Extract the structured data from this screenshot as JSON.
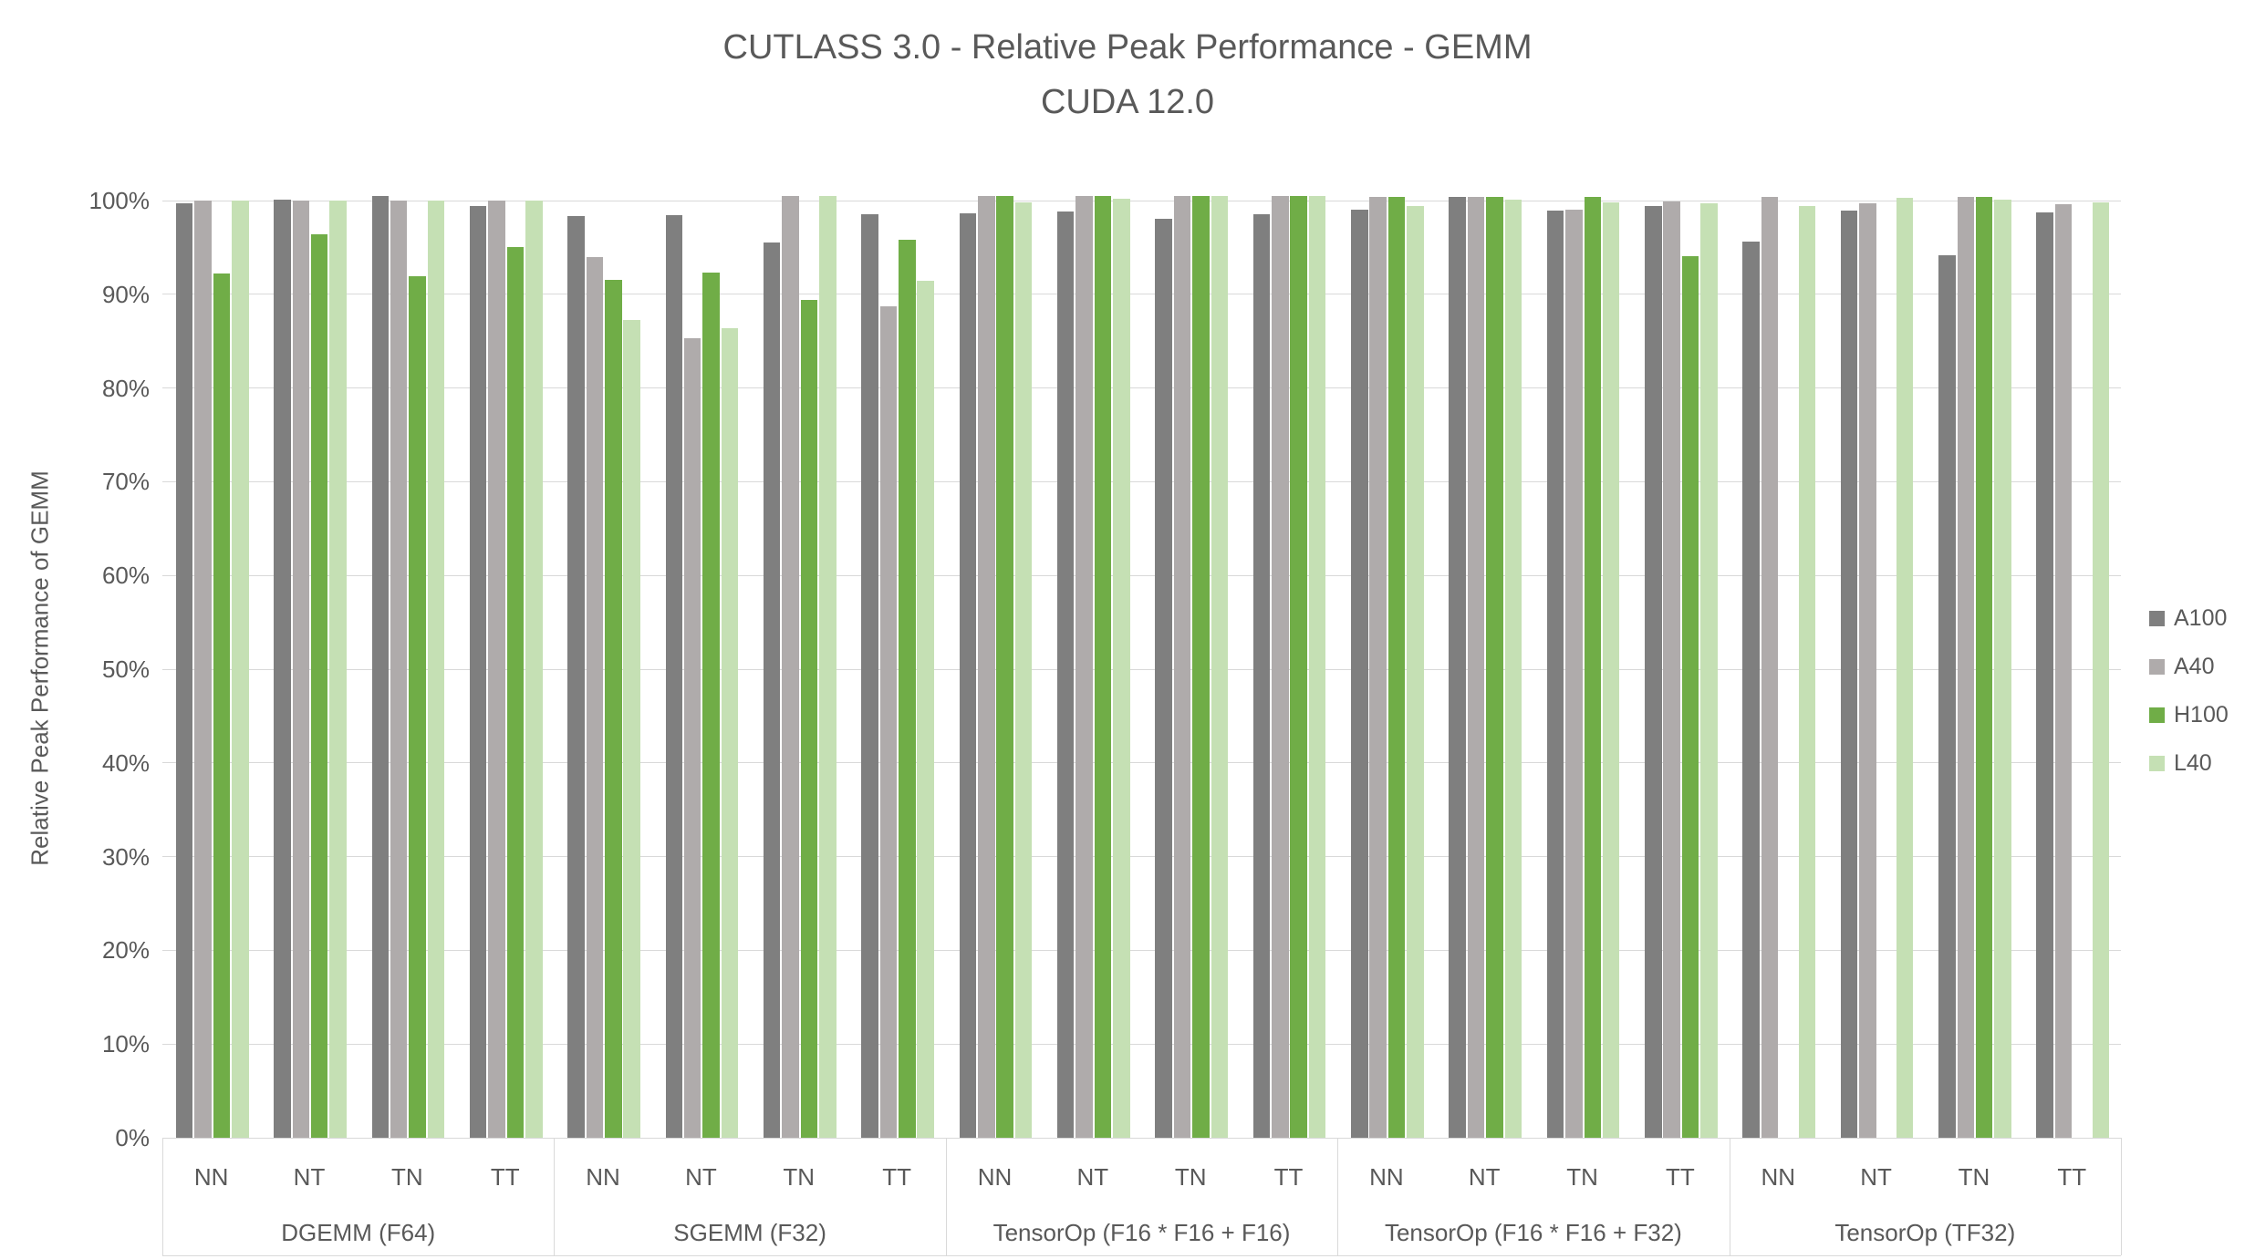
{
  "title": {
    "line1": "CUTLASS 3.0 - Relative Peak Performance - GEMM",
    "line2": "CUDA 12.0"
  },
  "y_axis": {
    "label": "Relative Peak Performance of GEMM",
    "ticks": [
      "0%",
      "10%",
      "20%",
      "30%",
      "40%",
      "50%",
      "60%",
      "70%",
      "80%",
      "90%",
      "100%"
    ]
  },
  "legend": [
    {
      "label": "A100",
      "color": "#7F7F7F"
    },
    {
      "label": "A40",
      "color": "#AFABAB"
    },
    {
      "label": "H100",
      "color": "#70AD47"
    },
    {
      "label": "L40",
      "color": "#C5E0B4"
    }
  ],
  "chart_data": {
    "type": "bar",
    "title": "CUTLASS 3.0 - Relative Peak Performance - GEMM  CUDA 12.0",
    "xlabel": "",
    "ylabel": "Relative Peak Performance of GEMM",
    "unit": "percent",
    "ylim": [
      0,
      101
    ],
    "grid": true,
    "legend_position": "right",
    "groups": [
      {
        "label": "DGEMM (F64)",
        "categories": [
          "NN",
          "NT",
          "TN",
          "TT"
        ]
      },
      {
        "label": "SGEMM (F32)",
        "categories": [
          "NN",
          "NT",
          "TN",
          "TT"
        ]
      },
      {
        "label": "TensorOp (F16 * F16 + F16)",
        "categories": [
          "NN",
          "NT",
          "TN",
          "TT"
        ]
      },
      {
        "label": "TensorOp (F16 * F16 + F32)",
        "categories": [
          "NN",
          "NT",
          "TN",
          "TT"
        ]
      },
      {
        "label": "TensorOp (TF32)",
        "categories": [
          "NN",
          "NT",
          "TN",
          "TT"
        ]
      }
    ],
    "series": [
      {
        "name": "A100",
        "color": "#7F7F7F",
        "values": [
          99.7,
          100.1,
          100.5,
          99.4,
          98.3,
          98.4,
          95.5,
          98.5,
          98.6,
          98.8,
          98.1,
          98.5,
          99.0,
          100.4,
          98.9,
          99.4,
          95.6,
          98.9,
          94.2,
          98.7
        ]
      },
      {
        "name": "A40",
        "color": "#AFABAB",
        "values": [
          100.0,
          100.0,
          100.0,
          100.0,
          94.0,
          85.3,
          100.5,
          88.7,
          100.5,
          100.5,
          100.5,
          100.5,
          100.4,
          100.4,
          99.0,
          99.9,
          100.4,
          99.7,
          100.4,
          99.6
        ]
      },
      {
        "name": "H100",
        "color": "#70AD47",
        "values": [
          92.2,
          96.4,
          91.9,
          95.0,
          91.5,
          92.3,
          89.4,
          95.8,
          100.5,
          100.5,
          100.5,
          100.5,
          100.4,
          100.4,
          100.4,
          94.1,
          null,
          null,
          100.4,
          null
        ]
      },
      {
        "name": "L40",
        "color": "#C5E0B4",
        "values": [
          100.0,
          100.0,
          100.0,
          100.0,
          87.3,
          86.4,
          100.5,
          91.4,
          99.8,
          100.2,
          100.5,
          100.5,
          99.4,
          100.1,
          99.8,
          99.7,
          99.4,
          100.3,
          100.1,
          99.8
        ]
      }
    ]
  }
}
